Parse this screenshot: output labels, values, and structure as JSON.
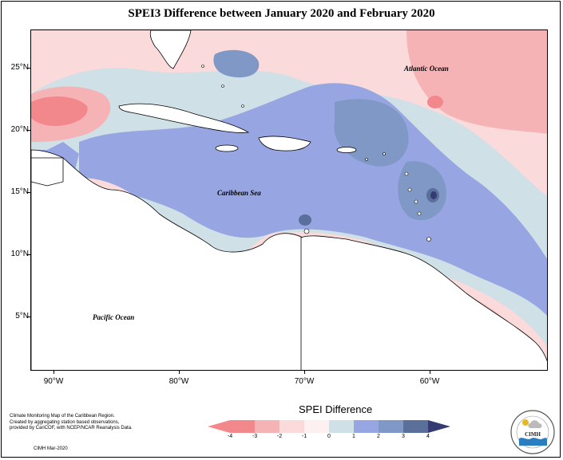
{
  "title": "SPEI3 Difference between January 2020 and February 2020",
  "map": {
    "lat_labels": [
      "25°N",
      "20°N",
      "15°N",
      "10°N",
      "5°N"
    ],
    "lon_labels": [
      "90°W",
      "80°W",
      "70°W",
      "60°W"
    ],
    "ocean_labels": {
      "atlantic": "Atlantic Ocean",
      "caribbean": "Caribbean Sea",
      "pacific": "Pacific Ocean"
    }
  },
  "legend": {
    "title": "SPEI Difference",
    "ticks": [
      "-4",
      "-3",
      "-2",
      "-1",
      "0",
      "1",
      "2",
      "3",
      "4"
    ],
    "colors": [
      "#f2888c",
      "#f6b3b5",
      "#fadadb",
      "#fdf0f1",
      "#cfe0e6",
      "#97a6e2",
      "#7f98c6",
      "#5a6f9a",
      "#343a72"
    ]
  },
  "credit": {
    "line1": "Climate Monitoring Map of the Caribbean Region.",
    "line2": "Created by aggregating station based observations,",
    "line3": "provided by CariCOF, with NCEP/NCAR Reanalysis Data.",
    "line4": "CIMH Mar-2020"
  },
  "logo": {
    "text": "CIMH"
  }
}
